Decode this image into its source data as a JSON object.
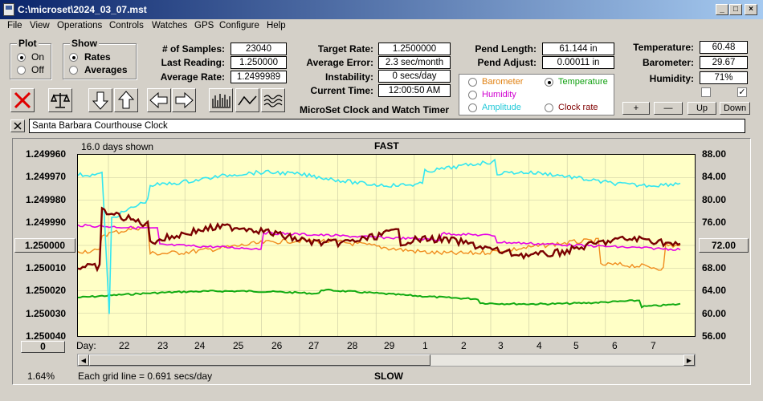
{
  "window": {
    "title": "C:\\microset\\2024_03_07.mst",
    "min": "_",
    "max": "□",
    "close": "×"
  },
  "menu": [
    "File",
    "View",
    "Operations",
    "Controls",
    "Watches",
    "GPS",
    "Configure",
    "Help"
  ],
  "plot_group": {
    "title": "Plot",
    "on": "On",
    "off": "Off",
    "selected": "On"
  },
  "show_group": {
    "title": "Show",
    "rates": "Rates",
    "averages": "Averages",
    "selected": "Rates"
  },
  "stats": {
    "samples_label": "# of Samples:",
    "samples": "23040",
    "last_label": "Last Reading:",
    "last": "1.250000",
    "avg_label": "Average Rate:",
    "avg": "1.2499989"
  },
  "rates": {
    "target_label": "Target Rate:",
    "target": "1.2500000",
    "error_label": "Average Error:",
    "error": "2.3 sec/month",
    "instab_label": "Instability:",
    "instab": "0 secs/day",
    "time_label": "Current Time:",
    "time": "12:00:50 AM"
  },
  "app_name": "MicroSet Clock and Watch Timer",
  "pend": {
    "length_label": "Pend Length:",
    "length": "61.144 in",
    "adjust_label": "Pend Adjust:",
    "adjust": "0.00011 in"
  },
  "env": {
    "temp_label": "Temperature:",
    "temp": "60.48",
    "baro_label": "Barometer:",
    "baro": "29.67",
    "hum_label": "Humidity:",
    "hum": "71%"
  },
  "aux_select": {
    "barometer": "Barometer",
    "temperature": "Temperature",
    "humidity": "Humidity",
    "amplitude": "Amplitude",
    "clock_rate": "Clock rate",
    "selected": "Temperature"
  },
  "aux_buttons": {
    "plus": "+",
    "minus": "—",
    "up": "Up",
    "down": "Down"
  },
  "clock_name": "Santa Barbara Courthouse Clock",
  "graph": {
    "days_shown": "16.0 days shown",
    "fast": "FAST",
    "slow": "SLOW",
    "grid_note": "Each grid line = 0.691 secs/day",
    "left_pct": "1.64%",
    "day_label": "Day:",
    "left_center_button": "1.250000",
    "right_center_button": "72.00",
    "bottom_left_button": "0",
    "left_ticks": [
      "1.249960",
      "1.249970",
      "1.249980",
      "1.249990",
      "1.250010",
      "1.250020",
      "1.250030",
      "1.250040"
    ],
    "right_ticks": [
      "88.00",
      "84.00",
      "80.00",
      "76.00",
      "68.00",
      "64.00",
      "60.00",
      "56.00"
    ],
    "day_ticks": [
      "22",
      "23",
      "24",
      "25",
      "26",
      "27",
      "28",
      "29",
      "1",
      "2",
      "3",
      "4",
      "5",
      "6",
      "7"
    ]
  },
  "colors": {
    "rate": "#7a0000",
    "temperature": "#33e6f0",
    "humidity": "#e600e6",
    "barometer": "#f08c1e",
    "pressure_aux": "#11aa11",
    "plot_bg": "#ffffc6",
    "title_bar": "#0a246a"
  }
}
